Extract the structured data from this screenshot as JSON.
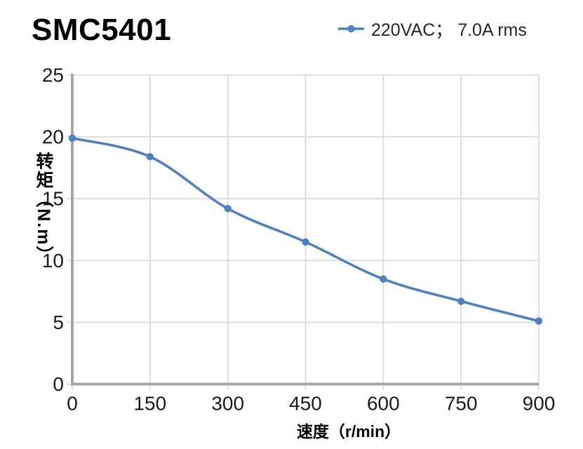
{
  "page": {
    "background": "#FFFFFF"
  },
  "chart_data": {
    "type": "line",
    "title": "SMC5401",
    "xlabel": "速度（r/min）",
    "ylabel": "转矩（N.m）",
    "x": [
      0,
      150,
      300,
      450,
      600,
      750,
      900
    ],
    "series": [
      {
        "name": "220VAC； 7.0A rms",
        "values": [
          19.9,
          18.4,
          14.2,
          11.5,
          8.5,
          6.7,
          5.1
        ],
        "color": "#4F81BD",
        "marker": "circle",
        "smooth": true
      }
    ],
    "xticks": [
      0,
      150,
      300,
      450,
      600,
      750,
      900
    ],
    "yticks": [
      0,
      5,
      10,
      15,
      20,
      25
    ],
    "xlim": [
      0,
      900
    ],
    "ylim": [
      0,
      25
    ],
    "grid": true,
    "legend_position": "top-right",
    "colors": {
      "series": "#4F81BD",
      "gridline": "#D9D9D9",
      "axis": "#A6A6A6",
      "text": "#1A1A1A"
    }
  }
}
